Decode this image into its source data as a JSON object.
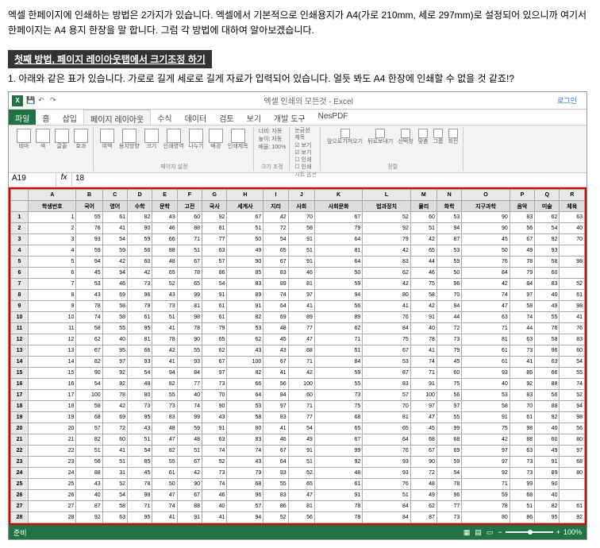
{
  "intro": "엑셀 한페이지에 인쇄하는 방법은 2가지가 있습니다. 엑셀에서 기본적으로 인쇄용지가 A4(가로 210mm, 세로 297mm)로 설정되어 있으니까 여기서 한페이지는 A4 용지 한장을 말 합니다. 그럼 각 방법에 대하여 알아보겠습니다.",
  "heading": "첫째 방법, 페이지 레이아웃탭에서 크기조정 하기",
  "subtext": "1. 아래와 같은 표가 있습니다. 가로로 길게 세로로 길게 자료가 입력되어 있습니다. 얼듯 봐도 A4 한장에 인쇄할 수 없을 것 같죠!?",
  "titlebar": "엑셀 인쇄의 모든것 - Excel",
  "login": "로그인",
  "tabs": {
    "file": "파일",
    "items": [
      "홈",
      "삽입",
      "페이지 레이아웃",
      "수식",
      "데이터",
      "검토",
      "보기",
      "개발 도구",
      "NesPDF"
    ]
  },
  "activeTab": 2,
  "ribbon": {
    "g1": {
      "btns": [
        "테마",
        "색",
        "글꼴",
        "효과"
      ],
      "label": ""
    },
    "g2": {
      "btns": [
        "여백",
        "용지방향",
        "크기",
        "인쇄영역",
        "나누기",
        "배경",
        "인쇄제목"
      ],
      "label": "페이지 설정"
    },
    "g3": {
      "items": [
        "너비: 자동",
        "높이: 자동",
        "배율: 100%"
      ],
      "label": "크기 조정"
    },
    "g4": {
      "items": [
        "눈금선",
        "제목",
        "☑ 보기",
        "☑ 보기",
        "☐ 인쇄",
        "☐ 인쇄"
      ],
      "label": "시트 옵션"
    },
    "g5": {
      "btns": [
        "앞으로가져오기",
        "뒤로보내기",
        "선택창",
        "맞춤",
        "그룹",
        "회전"
      ],
      "label": "정렬"
    }
  },
  "namebox": "A19",
  "fval": "18",
  "headers": [
    "학생번호",
    "국어",
    "영어",
    "수학",
    "문학",
    "고전",
    "국사",
    "세계사",
    "지리",
    "사회",
    "사회문화",
    "법과정치",
    "물리",
    "화학",
    "지구과학",
    "음악",
    "미술",
    "체육"
  ],
  "rows": [
    [
      1,
      55,
      61,
      82,
      43,
      60,
      92,
      67,
      42,
      70,
      67,
      52,
      60,
      53,
      90,
      83,
      62,
      63
    ],
    [
      2,
      76,
      41,
      90,
      46,
      88,
      81,
      51,
      72,
      58,
      79,
      92,
      51,
      94,
      90,
      56,
      54,
      40
    ],
    [
      3,
      93,
      54,
      59,
      66,
      71,
      77,
      50,
      54,
      91,
      64,
      79,
      42,
      87,
      45,
      67,
      92,
      70
    ],
    [
      4,
      59,
      59,
      56,
      88,
      51,
      63,
      49,
      65,
      51,
      81,
      42,
      65,
      53,
      50,
      49,
      93,
      ""
    ],
    [
      5,
      94,
      42,
      60,
      48,
      67,
      57,
      90,
      67,
      91,
      64,
      83,
      44,
      59,
      76,
      78,
      58,
      98
    ],
    [
      6,
      45,
      94,
      42,
      65,
      78,
      86,
      85,
      83,
      46,
      50,
      62,
      46,
      50,
      84,
      79,
      60,
      ""
    ],
    [
      7,
      53,
      46,
      73,
      52,
      65,
      54,
      83,
      89,
      81,
      59,
      42,
      75,
      96,
      42,
      84,
      83,
      52
    ],
    [
      8,
      43,
      69,
      96,
      43,
      99,
      91,
      89,
      74,
      97,
      94,
      80,
      58,
      70,
      74,
      97,
      40,
      61
    ],
    [
      9,
      78,
      58,
      79,
      73,
      81,
      61,
      91,
      64,
      41,
      56,
      41,
      42,
      94,
      47,
      58,
      49,
      98
    ],
    [
      10,
      74,
      58,
      61,
      51,
      98,
      61,
      82,
      69,
      89,
      89,
      76,
      91,
      44,
      63,
      74,
      55,
      41
    ],
    [
      11,
      58,
      55,
      95,
      41,
      78,
      79,
      53,
      48,
      77,
      62,
      84,
      40,
      72,
      71,
      44,
      76,
      76
    ],
    [
      12,
      62,
      40,
      81,
      78,
      90,
      65,
      62,
      45,
      47,
      71,
      75,
      78,
      73,
      81,
      63,
      58,
      83
    ],
    [
      13,
      67,
      95,
      66,
      42,
      55,
      62,
      43,
      43,
      68,
      51,
      67,
      41,
      79,
      61,
      73,
      96,
      60
    ],
    [
      14,
      82,
      97,
      93,
      41,
      93,
      67,
      100,
      67,
      71,
      84,
      53,
      74,
      45,
      61,
      41,
      63,
      54
    ],
    [
      15,
      90,
      92,
      54,
      94,
      84,
      97,
      82,
      41,
      42,
      59,
      87,
      71,
      60,
      93,
      86,
      66,
      55
    ],
    [
      16,
      54,
      92,
      48,
      82,
      77,
      73,
      66,
      56,
      100,
      55,
      83,
      91,
      75,
      40,
      92,
      88,
      74
    ],
    [
      17,
      100,
      78,
      80,
      55,
      40,
      70,
      64,
      84,
      60,
      73,
      57,
      100,
      56,
      53,
      83,
      56,
      52
    ],
    [
      18,
      58,
      42,
      73,
      73,
      74,
      90,
      53,
      97,
      71,
      75,
      70,
      97,
      97,
      58,
      70,
      88,
      94
    ],
    [
      19,
      68,
      69,
      95,
      83,
      99,
      43,
      58,
      83,
      77,
      68,
      81,
      47,
      55,
      91,
      61,
      92,
      98
    ],
    [
      20,
      57,
      72,
      43,
      48,
      59,
      91,
      80,
      41,
      54,
      65,
      65,
      45,
      99,
      75,
      98,
      40,
      56
    ],
    [
      21,
      82,
      60,
      51,
      47,
      48,
      63,
      83,
      46,
      49,
      67,
      64,
      68,
      68,
      42,
      88,
      60,
      80
    ],
    [
      22,
      51,
      41,
      54,
      82,
      51,
      74,
      74,
      67,
      91,
      99,
      76,
      67,
      69,
      97,
      63,
      49,
      97
    ],
    [
      23,
      56,
      51,
      85,
      55,
      67,
      52,
      43,
      64,
      51,
      92,
      93,
      90,
      59,
      97,
      73,
      91,
      68
    ],
    [
      24,
      88,
      31,
      45,
      61,
      42,
      73,
      79,
      93,
      52,
      48,
      93,
      72,
      54,
      92,
      73,
      89,
      80
    ],
    [
      25,
      43,
      52,
      78,
      50,
      90,
      74,
      68,
      55,
      65,
      61,
      76,
      48,
      78,
      71,
      99,
      90,
      ""
    ],
    [
      26,
      40,
      54,
      98,
      47,
      67,
      46,
      96,
      83,
      47,
      91,
      51,
      49,
      96,
      59,
      68,
      40,
      ""
    ],
    [
      27,
      87,
      58,
      71,
      74,
      88,
      40,
      57,
      86,
      81,
      78,
      84,
      62,
      77,
      78,
      51,
      82,
      61
    ],
    [
      28,
      92,
      63,
      95,
      41,
      91,
      41,
      94,
      52,
      56,
      78,
      84,
      87,
      73,
      80,
      86,
      95,
      92
    ]
  ],
  "status": {
    "ready": "준비",
    "zoom": "100%"
  }
}
